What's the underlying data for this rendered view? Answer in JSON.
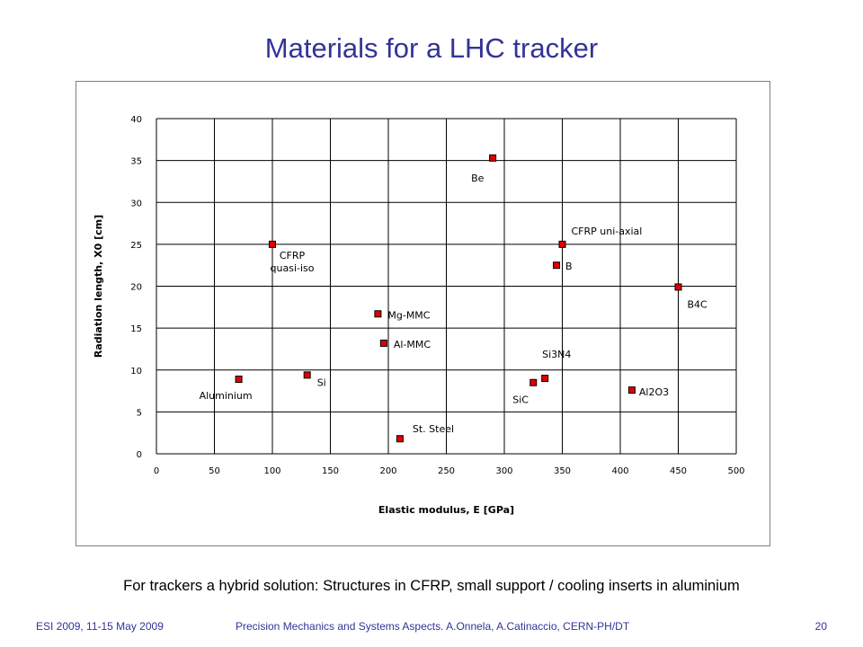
{
  "slide": {
    "title": "Materials for a LHC tracker",
    "caption": "For trackers a hybrid solution: Structures in CFRP, small support / cooling inserts in aluminium",
    "footer_left": "ESI 2009,  11-15 May 2009",
    "footer_center": "Precision Mechanics and Systems Aspects.   A.Onnela, A.Catinaccio, CERN-PH/DT",
    "page_number": "20"
  },
  "colors": {
    "title": "#333399",
    "marker_fill": "#e00000",
    "marker_stroke": "#000000",
    "grid": "#000000"
  },
  "chart_data": {
    "type": "scatter",
    "title": "",
    "xlabel": "Elastic modulus, E [GPa]",
    "ylabel": "Radiation length, X0 [cm]",
    "xlim": [
      0,
      500
    ],
    "ylim": [
      0,
      40
    ],
    "x_ticks": [
      "0",
      "50",
      "100",
      "150",
      "200",
      "250",
      "300",
      "350",
      "400",
      "450",
      "500"
    ],
    "y_ticks": [
      "0",
      "5",
      "10",
      "15",
      "20",
      "25",
      "30",
      "35",
      "40"
    ],
    "grid": "vertical and horizontal major gridlines",
    "legend": "none",
    "points": [
      {
        "label": "Aluminium",
        "x": 71,
        "y": 8.9
      },
      {
        "label": "Si",
        "x": 130,
        "y": 9.4
      },
      {
        "label": "CFRP\nquasi-iso",
        "x": 100,
        "y": 25
      },
      {
        "label": "Mg-MMC",
        "x": 191,
        "y": 16.7
      },
      {
        "label": "Al-MMC",
        "x": 196,
        "y": 13.2
      },
      {
        "label": "St. Steel",
        "x": 210,
        "y": 1.8
      },
      {
        "label": "Be",
        "x": 290,
        "y": 35.3
      },
      {
        "label": "SiC",
        "x": 325,
        "y": 8.5
      },
      {
        "label": "Si3N4",
        "x": 335,
        "y": 9
      },
      {
        "label": "CFRP uni-axial",
        "x": 350,
        "y": 25
      },
      {
        "label": "B",
        "x": 345,
        "y": 22.5
      },
      {
        "label": "Al2O3",
        "x": 410,
        "y": 7.6
      },
      {
        "label": "B4C",
        "x": 450,
        "y": 19.9
      }
    ]
  }
}
